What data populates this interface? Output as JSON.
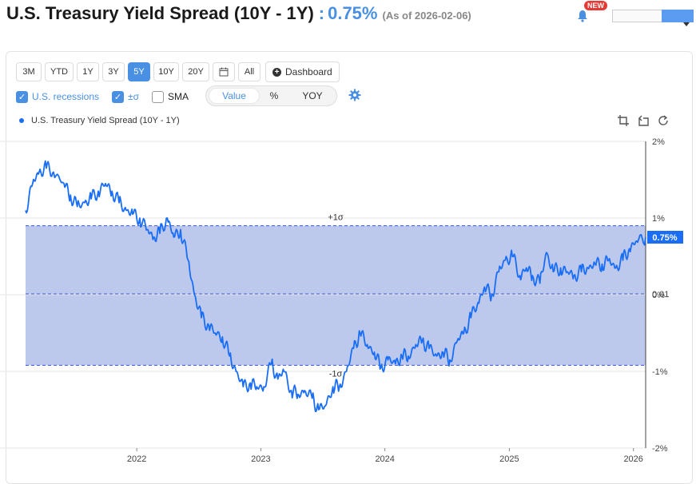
{
  "header": {
    "title": "U.S. Treasury Yield Spread (10Y - 1Y)",
    "colon": ":",
    "value": "0.75%",
    "as_of": "(As of 2026-02-06)",
    "new_badge": "NEW",
    "bell_icon": "bell-icon"
  },
  "range_buttons": [
    {
      "label": "3M",
      "active": false
    },
    {
      "label": "YTD",
      "active": false
    },
    {
      "label": "1Y",
      "active": false
    },
    {
      "label": "3Y",
      "active": false
    },
    {
      "label": "5Y",
      "active": true
    },
    {
      "label": "10Y",
      "active": false
    },
    {
      "label": "20Y",
      "active": false
    },
    {
      "label": "",
      "icon": "calendar-icon",
      "active": false
    },
    {
      "label": "All",
      "active": false
    }
  ],
  "dashboard_button": {
    "label": "Dashboard",
    "icon": "plus-circle-icon"
  },
  "options": {
    "recessions": {
      "label": "U.S. recessions",
      "checked": true
    },
    "sigma": {
      "label": "±σ",
      "checked": true
    },
    "sma": {
      "label": "SMA",
      "checked": false
    }
  },
  "view_toggle": {
    "options": [
      "Value",
      "%",
      "YOY"
    ],
    "selected": "Value"
  },
  "legend": {
    "series_name": "U.S. Treasury Yield Spread (10Y - 1Y)"
  },
  "colors": {
    "accent": "#4a90e2",
    "line": "#1a6ef5",
    "band": "#bcc8ec"
  },
  "chart_data": {
    "type": "line",
    "title": "U.S. Treasury Yield Spread (10Y - 1Y)",
    "xlabel": "",
    "ylabel": "",
    "x_ticks": [
      "2022",
      "2023",
      "2024",
      "2025",
      "2026"
    ],
    "y_ticks": [
      "2%",
      "1%",
      "0%",
      "-1%",
      "-2%"
    ],
    "ylim": [
      -2,
      2
    ],
    "xlim": [
      "2021-02-08",
      "2026-02-06"
    ],
    "grid": true,
    "mean": 0.01,
    "mean_label": "0.01",
    "plus_sigma": 0.9,
    "plus_sigma_label": "+1σ",
    "minus_sigma": -0.92,
    "minus_sigma_label": "-1σ",
    "last_value_label": "0.75%",
    "series": [
      {
        "name": "U.S. Treasury Yield Spread (10Y - 1Y)",
        "x": [
          "2021-02-08",
          "2021-03-01",
          "2021-03-20",
          "2021-04-10",
          "2021-05-01",
          "2021-06-01",
          "2021-06-20",
          "2021-07-10",
          "2021-08-01",
          "2021-08-20",
          "2021-09-10",
          "2021-10-01",
          "2021-10-20",
          "2021-11-10",
          "2021-12-01",
          "2021-12-20",
          "2022-01-10",
          "2022-02-01",
          "2022-02-20",
          "2022-03-10",
          "2022-04-01",
          "2022-04-20",
          "2022-05-10",
          "2022-06-01",
          "2022-06-20",
          "2022-07-10",
          "2022-08-01",
          "2022-08-20",
          "2022-09-10",
          "2022-10-01",
          "2022-10-20",
          "2022-11-10",
          "2022-12-01",
          "2022-12-20",
          "2023-01-10",
          "2023-02-01",
          "2023-02-20",
          "2023-03-10",
          "2023-04-01",
          "2023-04-20",
          "2023-05-10",
          "2023-06-01",
          "2023-06-20",
          "2023-07-10",
          "2023-08-01",
          "2023-08-20",
          "2023-09-10",
          "2023-10-01",
          "2023-10-20",
          "2023-11-10",
          "2023-12-01",
          "2023-12-20",
          "2024-01-10",
          "2024-02-01",
          "2024-02-20",
          "2024-03-10",
          "2024-04-01",
          "2024-04-20",
          "2024-05-10",
          "2024-06-01",
          "2024-06-20",
          "2024-07-10",
          "2024-08-01",
          "2024-08-20",
          "2024-09-10",
          "2024-10-01",
          "2024-10-20",
          "2024-11-10",
          "2024-12-01",
          "2024-12-20",
          "2025-01-10",
          "2025-02-01",
          "2025-02-20",
          "2025-03-10",
          "2025-04-01",
          "2025-04-20",
          "2025-05-10",
          "2025-06-01",
          "2025-06-20",
          "2025-07-10",
          "2025-08-01",
          "2025-08-20",
          "2025-09-10",
          "2025-10-01",
          "2025-10-20",
          "2025-11-10",
          "2025-12-01",
          "2025-12-20",
          "2026-01-10",
          "2026-02-06"
        ],
        "values": [
          1.1,
          1.45,
          1.6,
          1.65,
          1.6,
          1.45,
          1.3,
          1.15,
          1.2,
          1.25,
          1.35,
          1.45,
          1.35,
          1.2,
          1.1,
          1.05,
          1.0,
          0.85,
          0.75,
          0.8,
          1.0,
          0.75,
          0.85,
          0.45,
          0.0,
          -0.3,
          -0.4,
          -0.5,
          -0.55,
          -0.8,
          -1.0,
          -1.2,
          -1.15,
          -1.2,
          -1.2,
          -0.9,
          -1.1,
          -1.0,
          -1.25,
          -1.3,
          -1.25,
          -1.35,
          -1.5,
          -1.45,
          -1.2,
          -1.2,
          -1.0,
          -0.7,
          -0.5,
          -0.65,
          -0.75,
          -0.95,
          -0.85,
          -0.9,
          -0.8,
          -0.8,
          -0.65,
          -0.6,
          -0.7,
          -0.8,
          -0.75,
          -0.85,
          -0.6,
          -0.5,
          -0.3,
          -0.1,
          0.1,
          0.0,
          0.3,
          0.45,
          0.5,
          0.25,
          0.35,
          0.25,
          0.15,
          0.55,
          0.3,
          0.35,
          0.3,
          0.25,
          0.3,
          0.35,
          0.4,
          0.4,
          0.45,
          0.35,
          0.45,
          0.6,
          0.7,
          0.75
        ]
      }
    ]
  }
}
